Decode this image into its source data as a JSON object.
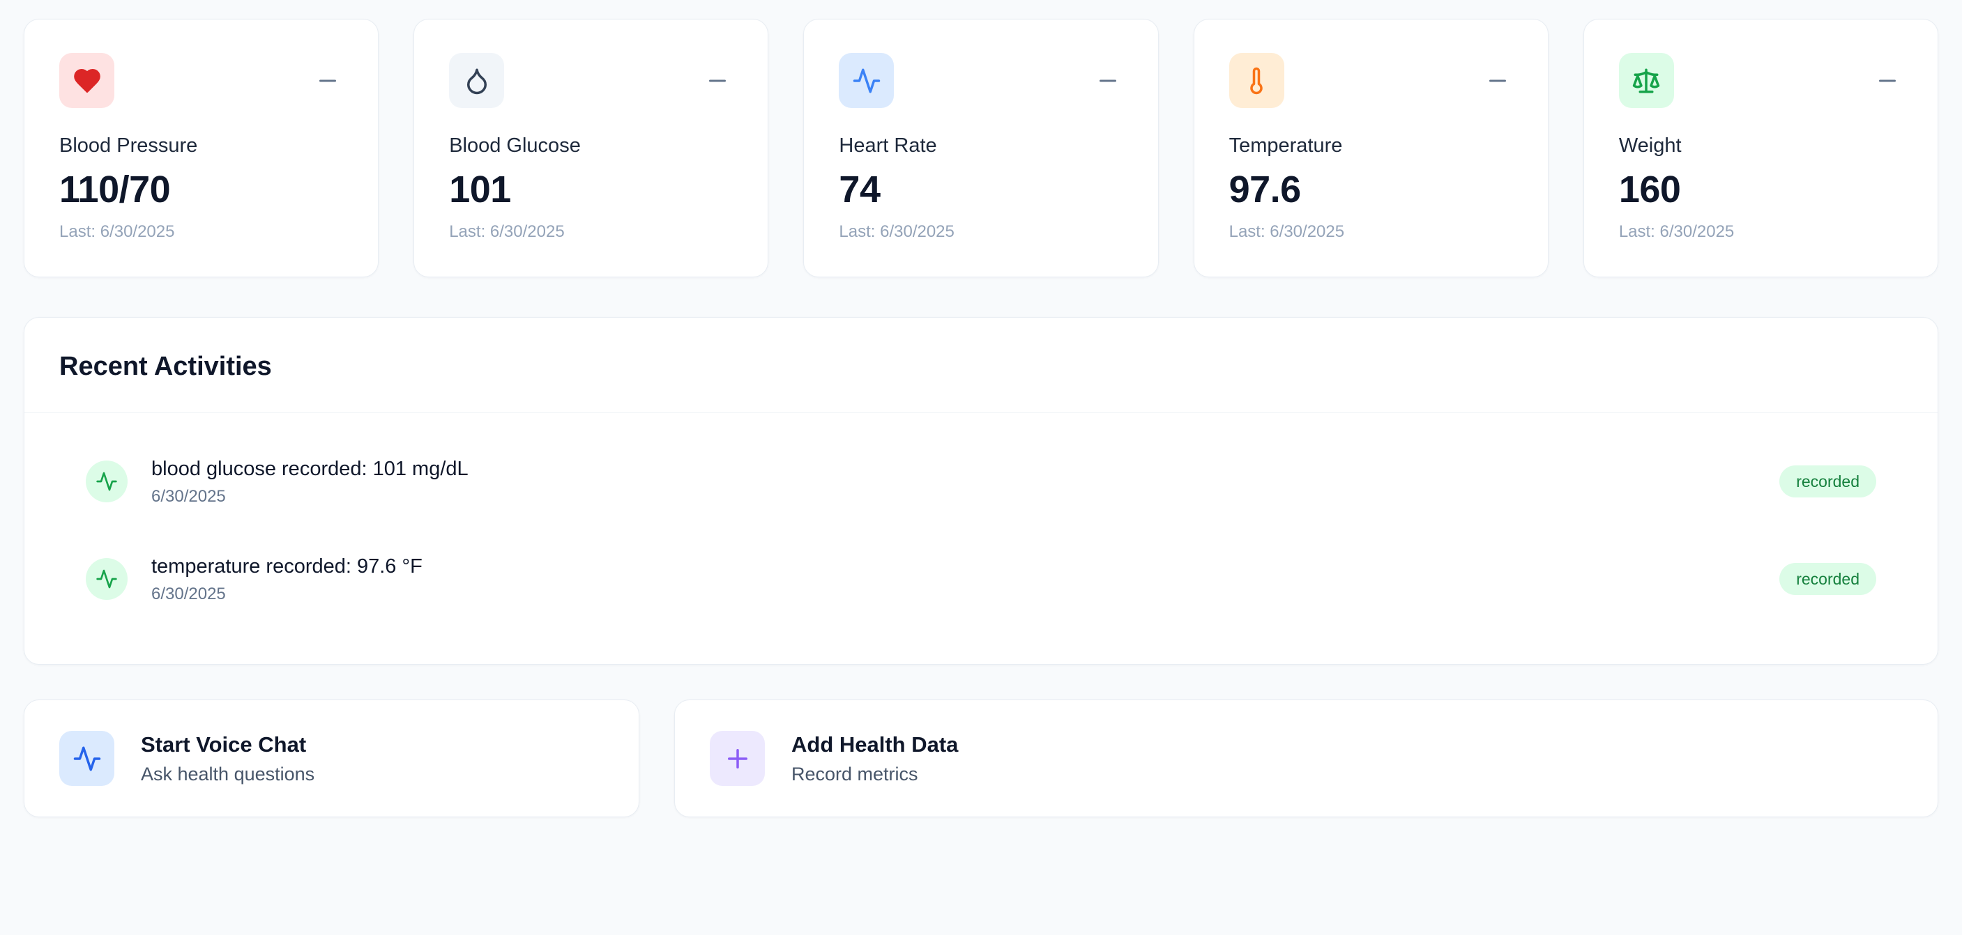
{
  "metrics": [
    {
      "label": "Blood Pressure",
      "value": "110/70",
      "last": "Last: 6/30/2025",
      "icon": "heart-icon",
      "icon_bg": "#fee2e2",
      "icon_color": "#dc2626"
    },
    {
      "label": "Blood Glucose",
      "value": "101",
      "last": "Last: 6/30/2025",
      "icon": "droplet-icon",
      "icon_bg": "#f1f5f9",
      "icon_color": "#334155"
    },
    {
      "label": "Heart Rate",
      "value": "74",
      "last": "Last: 6/30/2025",
      "icon": "pulse-icon",
      "icon_bg": "#dbeafe",
      "icon_color": "#3b82f6"
    },
    {
      "label": "Temperature",
      "value": "97.6",
      "last": "Last: 6/30/2025",
      "icon": "thermometer-icon",
      "icon_bg": "#ffedd5",
      "icon_color": "#f97316"
    },
    {
      "label": "Weight",
      "value": "160",
      "last": "Last: 6/30/2025",
      "icon": "scale-icon",
      "icon_bg": "#dcfce7",
      "icon_color": "#16a34a"
    }
  ],
  "activities": {
    "title": "Recent Activities",
    "items": [
      {
        "text": "blood glucose recorded: 101 mg/dL",
        "date": "6/30/2025",
        "status": "recorded",
        "icon": "pulse-icon",
        "icon_bg": "#dcfce7",
        "icon_color": "#16a34a",
        "badge_bg": "#dcfce7",
        "badge_color": "#15803d"
      },
      {
        "text": "temperature recorded: 97.6 °F",
        "date": "6/30/2025",
        "status": "recorded",
        "icon": "pulse-icon",
        "icon_bg": "#dcfce7",
        "icon_color": "#16a34a",
        "badge_bg": "#dcfce7",
        "badge_color": "#15803d"
      }
    ]
  },
  "actions": [
    {
      "name": "start-voice-chat-card",
      "title": "Start Voice Chat",
      "subtitle": "Ask health questions",
      "icon": "pulse-icon",
      "icon_bg": "#dbeafe",
      "icon_color": "#2563eb"
    },
    {
      "name": "add-health-data-card",
      "title": "Add Health Data",
      "subtitle": "Record metrics",
      "icon": "plus-icon",
      "icon_bg": "#ede9fe",
      "icon_color": "#8b5cf6"
    }
  ]
}
